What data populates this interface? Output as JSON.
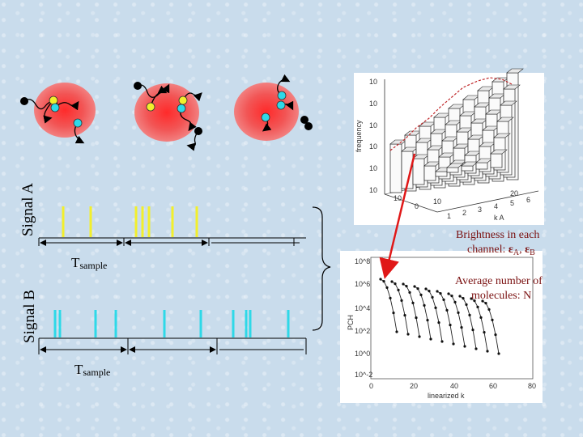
{
  "signal_a_label": "Signal A",
  "signal_b_label": "Signal B",
  "t_sample_main": "T",
  "t_sample_sub": "sample",
  "brightness_line1": "Brightness in each",
  "brightness_line2_prefix": "channel: ",
  "epsilon_symbol": "ε",
  "sub_a": "A",
  "sub_b": "B",
  "separator": ", ",
  "avg_line1": "Average number of",
  "avg_line2": "molecules: N",
  "plot3d": {
    "z_ticks": [
      "10",
      "10",
      "10",
      "10",
      "10",
      "10"
    ],
    "x_ticks": [
      "10",
      "1",
      "2",
      "3",
      "4",
      "5",
      "6"
    ],
    "y_ticks": [
      "0",
      "10",
      "20"
    ],
    "z_label": "frequency",
    "x_label": "k A"
  },
  "plot2d": {
    "y_ticks": [
      "10^8",
      "10^6",
      "10^4",
      "10^2",
      "10^0",
      "10^-2"
    ],
    "x_ticks": [
      "0",
      "20",
      "40",
      "60",
      "80"
    ],
    "y_label": "PCH",
    "x_label": "linearized k"
  },
  "colors": {
    "blob": "#f06a6a",
    "blob_core": "#ff3030",
    "yellow": "#f2ef2c",
    "cyan": "#2ed9e8",
    "arrow": "#e01818"
  }
}
